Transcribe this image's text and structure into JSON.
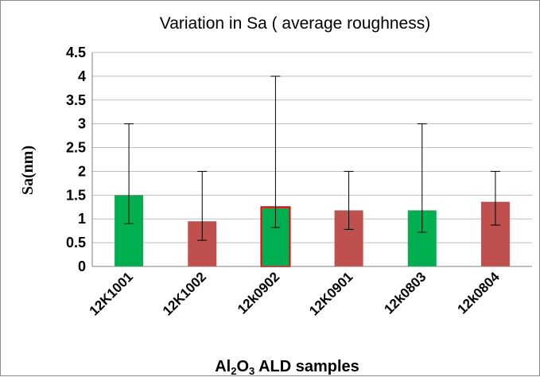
{
  "chart_data": {
    "type": "bar",
    "title": "Variation in Sa ( average roughness)",
    "ylabel": "Sa(nm)",
    "xlabel": {
      "parts": [
        [
          "Al",
          ""
        ],
        [
          "2",
          "sub"
        ],
        [
          "O",
          ""
        ],
        [
          "3",
          "sub"
        ],
        [
          " ALD samples",
          ""
        ]
      ]
    },
    "ylim": [
      0,
      4.5
    ],
    "yticks": [
      "0",
      "0.5",
      "1",
      "1.5",
      "2",
      "2.5",
      "3",
      "3.5",
      "4",
      "4.5"
    ],
    "grid": true,
    "legend": "none",
    "categories": [
      "12K1001",
      "12K1002",
      "12k0902",
      "12K0901",
      "12k0803",
      "12k0804"
    ],
    "values": [
      1.5,
      0.95,
      1.25,
      1.18,
      1.18,
      1.36
    ],
    "error_low": [
      0.9,
      0.55,
      0.82,
      0.78,
      0.72,
      0.87
    ],
    "error_high": [
      3.0,
      2.0,
      4.0,
      2.0,
      3.0,
      2.0
    ],
    "colors": [
      "#00b050",
      "#c0504d",
      "#00b050",
      "#c0504d",
      "#00b050",
      "#c0504d"
    ],
    "highlight_border": [
      "",
      "",
      "#ff0000",
      "",
      "",
      ""
    ]
  }
}
